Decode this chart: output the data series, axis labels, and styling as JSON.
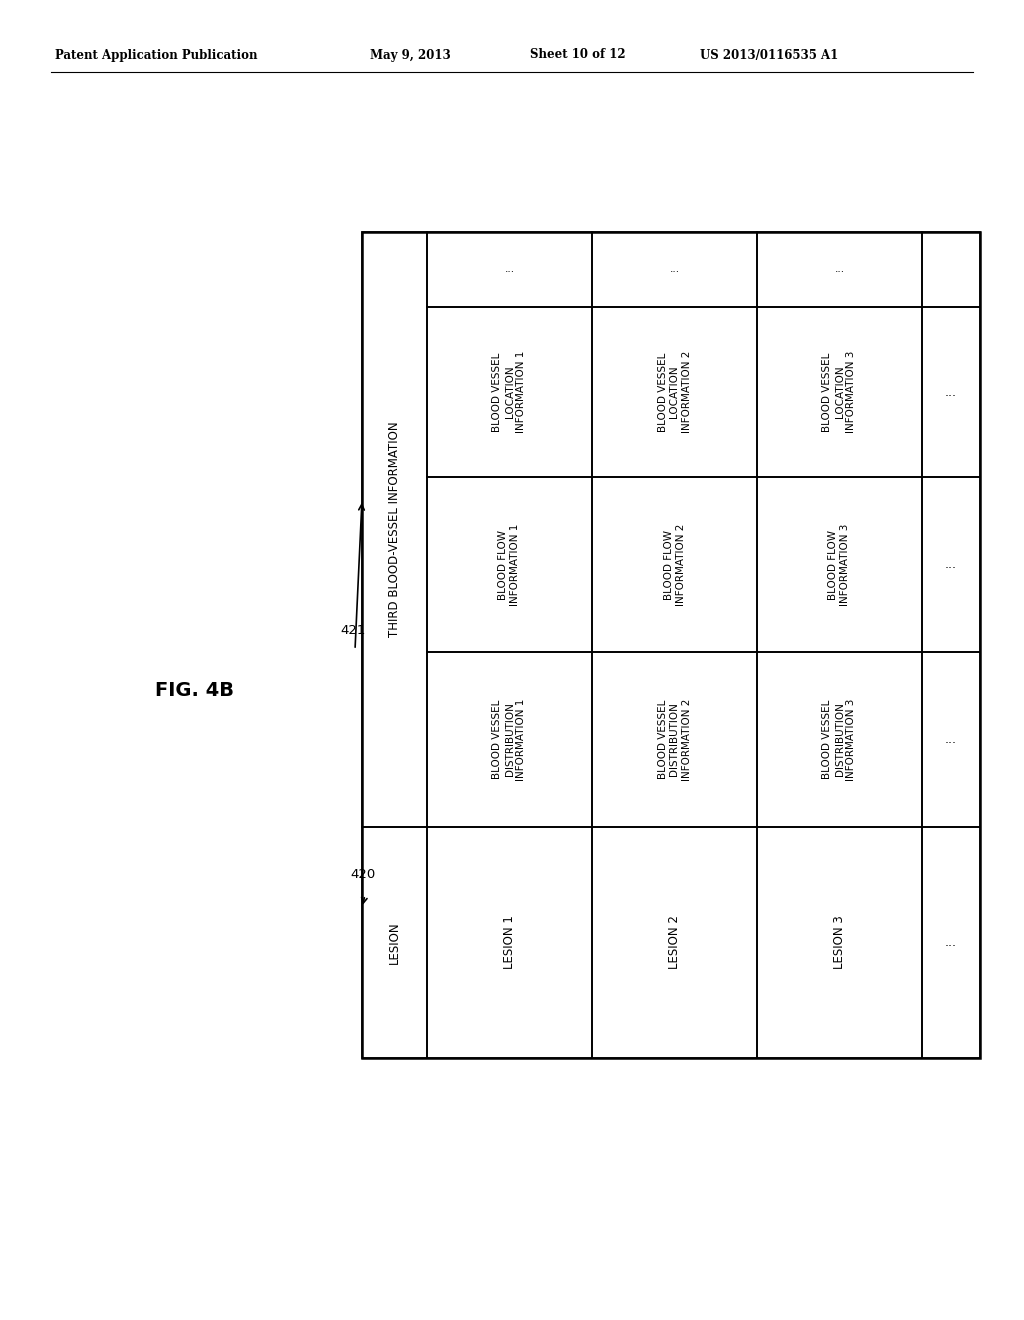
{
  "title": "FIG. 4B",
  "header_line1": "Patent Application Publication",
  "header_line2": "May 9, 2013",
  "header_line3": "Sheet 10 of 12",
  "header_line4": "US 2013/0116535 A1",
  "label_420": "420",
  "label_421": "421",
  "third_bv_info_label": "THIRD BLOOD-VESSEL INFORMATION",
  "col0_header": "LESION",
  "col1_header": "BLOOD VESSEL\nDISTRIBUTION\nINFORMATION",
  "col2_header": "BLOOD FLOW\nINFORMATION",
  "col3_header": "BLOOD VESSEL\nLOCATION\nINFORMATION",
  "col4_header": "...",
  "rows": [
    [
      "LESION 1",
      "BLOOD VESSEL\nDISTRIBUTION\nINFORMATION 1",
      "BLOOD FLOW\nINFORMATION 1",
      "BLOOD VESSEL\nLOCATION\nINFORMATION 1",
      "..."
    ],
    [
      "LESION 2",
      "BLOOD VESSEL\nDISTRIBUTION\nINFORMATION 2",
      "BLOOD FLOW\nINFORMATION 2",
      "BLOOD VESSEL\nLOCATION\nINFORMATION 2",
      "..."
    ],
    [
      "LESION 3",
      "BLOOD VESSEL\nDISTRIBUTION\nINFORMATION 3",
      "BLOOD FLOW\nINFORMATION 3",
      "BLOOD VESSEL\nLOCATION\nINFORMATION 3",
      "..."
    ]
  ],
  "bg_color": "#ffffff",
  "text_color": "#000000",
  "border_color": "#000000",
  "font_size_cell": 7.0,
  "font_size_title": 14,
  "font_size_patent_header": 8.5,
  "font_size_label": 9.5
}
